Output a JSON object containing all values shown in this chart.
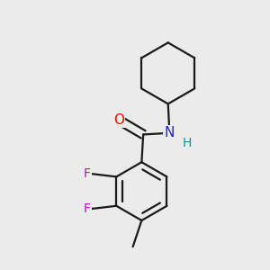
{
  "background_color": "#ebebeb",
  "bond_color": "#1a1a1a",
  "atom_colors": {
    "O": "#ff0000",
    "N": "#2222cc",
    "H": "#009999",
    "F": "#cc00cc",
    "C": "#1a1a1a"
  },
  "bond_width": 1.6,
  "figsize": [
    3.0,
    3.0
  ],
  "dpi": 100
}
